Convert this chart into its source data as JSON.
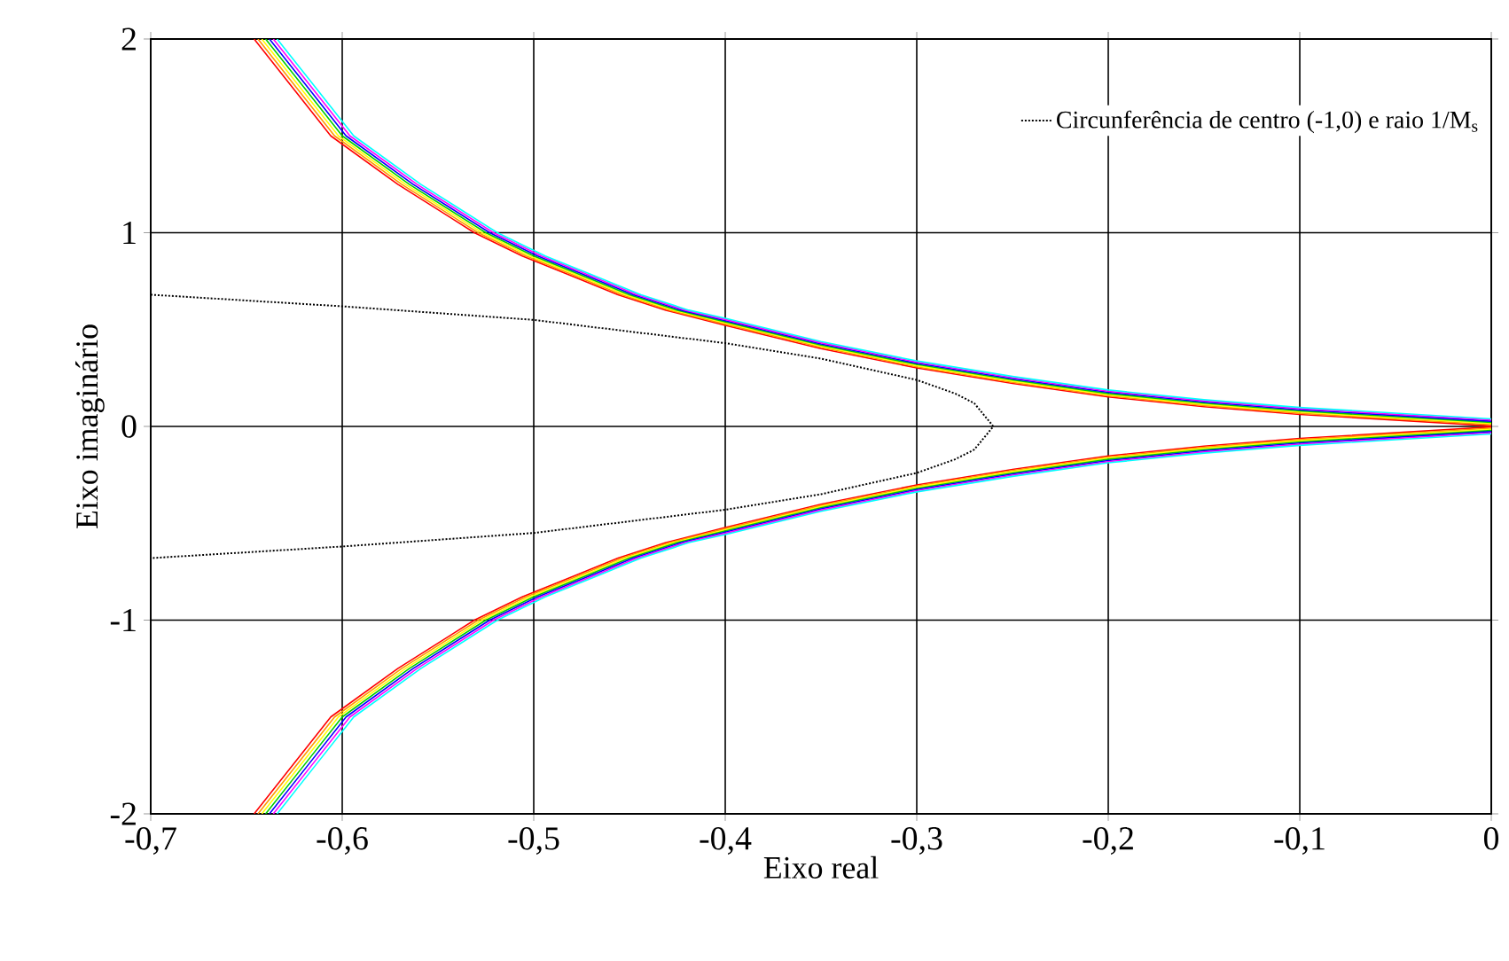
{
  "chart_data": {
    "type": "line",
    "xlabel": "Eixo real",
    "ylabel": "Eixo imaginário",
    "xlim": [
      -0.7,
      0
    ],
    "ylim": [
      -2,
      2
    ],
    "xticks": [
      {
        "value": -0.7,
        "label": "-0,7"
      },
      {
        "value": -0.6,
        "label": "-0,6"
      },
      {
        "value": -0.5,
        "label": "-0,5"
      },
      {
        "value": -0.4,
        "label": "-0,4"
      },
      {
        "value": -0.3,
        "label": "-0,3"
      },
      {
        "value": -0.2,
        "label": "-0,2"
      },
      {
        "value": -0.1,
        "label": "-0,1"
      },
      {
        "value": 0,
        "label": "0"
      }
    ],
    "yticks": [
      -2,
      -1,
      0,
      1,
      2
    ],
    "grid": true,
    "legend": "top right",
    "series": [
      {
        "color": "#ff0000",
        "x": [
          -0.646,
          -0.626,
          -0.606,
          -0.571,
          -0.531,
          -0.506,
          -0.481,
          -0.456,
          -0.431,
          -0.4,
          -0.35,
          -0.3,
          -0.25,
          -0.2,
          -0.15,
          -0.1,
          0
        ],
        "values": [
          2,
          1.75,
          1.5,
          1.25,
          1,
          0.88,
          0.78,
          0.68,
          0.6,
          0.522,
          0.402,
          0.302,
          0.222,
          0.152,
          0.102,
          0.062,
          0.003
        ]
      },
      {
        "color": "#ff0000",
        "x": [
          0,
          -0.1,
          -0.15,
          -0.2,
          -0.25,
          -0.3,
          -0.35,
          -0.4,
          -0.431,
          -0.456,
          -0.481,
          -0.506,
          -0.531,
          -0.571,
          -0.606,
          -0.626,
          -0.646
        ],
        "values": [
          -0.003,
          -0.062,
          -0.102,
          -0.152,
          -0.222,
          -0.302,
          -0.402,
          -0.522,
          -0.6,
          -0.68,
          -0.78,
          -0.88,
          -1,
          -1.25,
          -1.5,
          -1.75,
          -2
        ]
      },
      {
        "color": "#ff9900",
        "x": [
          -0.644,
          -0.624,
          -0.604,
          -0.569,
          -0.529,
          -0.504,
          -0.479,
          -0.454,
          -0.429,
          -0.4,
          -0.35,
          -0.3,
          -0.25,
          -0.2,
          -0.15,
          -0.1,
          0
        ],
        "values": [
          2,
          1.75,
          1.5,
          1.25,
          1,
          0.88,
          0.78,
          0.68,
          0.6,
          0.528,
          0.408,
          0.308,
          0.228,
          0.158,
          0.108,
          0.068,
          0.009
        ]
      },
      {
        "color": "#ff9900",
        "x": [
          0,
          -0.1,
          -0.15,
          -0.2,
          -0.25,
          -0.3,
          -0.35,
          -0.4,
          -0.429,
          -0.454,
          -0.479,
          -0.504,
          -0.529,
          -0.569,
          -0.604,
          -0.624,
          -0.644
        ],
        "values": [
          -0.009,
          -0.068,
          -0.108,
          -0.158,
          -0.228,
          -0.308,
          -0.408,
          -0.528,
          -0.6,
          -0.68,
          -0.78,
          -0.88,
          -1,
          -1.25,
          -1.5,
          -1.75,
          -2
        ]
      },
      {
        "color": "#ffff00",
        "x": [
          -0.642,
          -0.622,
          -0.602,
          -0.567,
          -0.527,
          -0.502,
          -0.477,
          -0.452,
          -0.427,
          -0.4,
          -0.35,
          -0.3,
          -0.25,
          -0.2,
          -0.15,
          -0.1,
          0
        ],
        "values": [
          2,
          1.75,
          1.5,
          1.25,
          1,
          0.88,
          0.78,
          0.68,
          0.6,
          0.534,
          0.414,
          0.314,
          0.234,
          0.164,
          0.114,
          0.074,
          0.015
        ]
      },
      {
        "color": "#ffff00",
        "x": [
          0,
          -0.1,
          -0.15,
          -0.2,
          -0.25,
          -0.3,
          -0.35,
          -0.4,
          -0.427,
          -0.452,
          -0.477,
          -0.502,
          -0.527,
          -0.567,
          -0.602,
          -0.622,
          -0.642
        ],
        "values": [
          -0.015,
          -0.074,
          -0.114,
          -0.164,
          -0.234,
          -0.314,
          -0.414,
          -0.534,
          -0.6,
          -0.68,
          -0.78,
          -0.88,
          -1,
          -1.25,
          -1.5,
          -1.75,
          -2
        ]
      },
      {
        "color": "#00cc00",
        "x": [
          -0.64,
          -0.62,
          -0.6,
          -0.565,
          -0.525,
          -0.5,
          -0.475,
          -0.45,
          -0.425,
          -0.4,
          -0.35,
          -0.3,
          -0.25,
          -0.2,
          -0.15,
          -0.1,
          0
        ],
        "values": [
          2,
          1.75,
          1.5,
          1.25,
          1,
          0.88,
          0.78,
          0.68,
          0.6,
          0.54,
          0.42,
          0.32,
          0.24,
          0.17,
          0.12,
          0.08,
          0.021
        ]
      },
      {
        "color": "#00cc00",
        "x": [
          0,
          -0.1,
          -0.15,
          -0.2,
          -0.25,
          -0.3,
          -0.35,
          -0.4,
          -0.425,
          -0.45,
          -0.475,
          -0.5,
          -0.525,
          -0.565,
          -0.6,
          -0.62,
          -0.64
        ],
        "values": [
          -0.021,
          -0.08,
          -0.12,
          -0.17,
          -0.24,
          -0.32,
          -0.42,
          -0.54,
          -0.6,
          -0.68,
          -0.78,
          -0.88,
          -1,
          -1.25,
          -1.5,
          -1.75,
          -2
        ]
      },
      {
        "color": "#0000ff",
        "x": [
          -0.638,
          -0.618,
          -0.598,
          -0.563,
          -0.523,
          -0.498,
          -0.473,
          -0.448,
          -0.423,
          -0.4,
          -0.35,
          -0.3,
          -0.25,
          -0.2,
          -0.15,
          -0.1,
          0
        ],
        "values": [
          2,
          1.75,
          1.5,
          1.25,
          1,
          0.88,
          0.78,
          0.68,
          0.6,
          0.546,
          0.426,
          0.326,
          0.246,
          0.176,
          0.126,
          0.086,
          0.027
        ]
      },
      {
        "color": "#0000ff",
        "x": [
          0,
          -0.1,
          -0.15,
          -0.2,
          -0.25,
          -0.3,
          -0.35,
          -0.4,
          -0.423,
          -0.448,
          -0.473,
          -0.498,
          -0.523,
          -0.563,
          -0.598,
          -0.618,
          -0.638
        ],
        "values": [
          -0.027,
          -0.086,
          -0.126,
          -0.176,
          -0.246,
          -0.326,
          -0.426,
          -0.546,
          -0.6,
          -0.68,
          -0.78,
          -0.88,
          -1,
          -1.25,
          -1.5,
          -1.75,
          -2
        ]
      },
      {
        "color": "#ff00ff",
        "x": [
          -0.636,
          -0.616,
          -0.596,
          -0.561,
          -0.521,
          -0.496,
          -0.471,
          -0.446,
          -0.421,
          -0.4,
          -0.35,
          -0.3,
          -0.25,
          -0.2,
          -0.15,
          -0.1,
          0
        ],
        "values": [
          2,
          1.75,
          1.5,
          1.25,
          1,
          0.88,
          0.78,
          0.68,
          0.6,
          0.552,
          0.432,
          0.332,
          0.252,
          0.182,
          0.132,
          0.092,
          0.033
        ]
      },
      {
        "color": "#ff00ff",
        "x": [
          0,
          -0.1,
          -0.15,
          -0.2,
          -0.25,
          -0.3,
          -0.35,
          -0.4,
          -0.421,
          -0.446,
          -0.471,
          -0.496,
          -0.521,
          -0.561,
          -0.596,
          -0.616,
          -0.636
        ],
        "values": [
          -0.033,
          -0.092,
          -0.132,
          -0.182,
          -0.252,
          -0.332,
          -0.432,
          -0.552,
          -0.6,
          -0.68,
          -0.78,
          -0.88,
          -1,
          -1.25,
          -1.5,
          -1.75,
          -2
        ]
      },
      {
        "color": "#00ffff",
        "x": [
          -0.634,
          -0.614,
          -0.594,
          -0.559,
          -0.519,
          -0.494,
          -0.469,
          -0.444,
          -0.419,
          -0.4,
          -0.35,
          -0.3,
          -0.25,
          -0.2,
          -0.15,
          -0.1,
          0
        ],
        "values": [
          2,
          1.75,
          1.5,
          1.25,
          1,
          0.88,
          0.78,
          0.68,
          0.6,
          0.558,
          0.438,
          0.338,
          0.258,
          0.188,
          0.138,
          0.098,
          0.039
        ]
      },
      {
        "color": "#00ffff",
        "x": [
          0,
          -0.1,
          -0.15,
          -0.2,
          -0.25,
          -0.3,
          -0.35,
          -0.4,
          -0.419,
          -0.444,
          -0.469,
          -0.494,
          -0.519,
          -0.559,
          -0.594,
          -0.614,
          -0.634
        ],
        "values": [
          -0.039,
          -0.098,
          -0.138,
          -0.188,
          -0.258,
          -0.338,
          -0.438,
          -0.558,
          -0.6,
          -0.68,
          -0.78,
          -0.88,
          -1,
          -1.25,
          -1.5,
          -1.75,
          -2
        ]
      },
      {
        "name": "Circunferência de centro (-1,0) e raio 1/M$_{s}$",
        "color": "#000000",
        "line_style": "dotted",
        "x": [
          -0.7,
          -0.6,
          -0.5,
          -0.4,
          -0.35,
          -0.3,
          -0.28,
          -0.27,
          -0.26,
          -0.27,
          -0.28,
          -0.3,
          -0.35,
          -0.4,
          -0.5,
          -0.6,
          -0.7
        ],
        "values": [
          0.68,
          0.62,
          0.55,
          0.43,
          0.35,
          0.24,
          0.17,
          0.12,
          0,
          -0.12,
          -0.17,
          -0.24,
          -0.35,
          -0.43,
          -0.55,
          -0.62,
          -0.68
        ]
      }
    ]
  }
}
